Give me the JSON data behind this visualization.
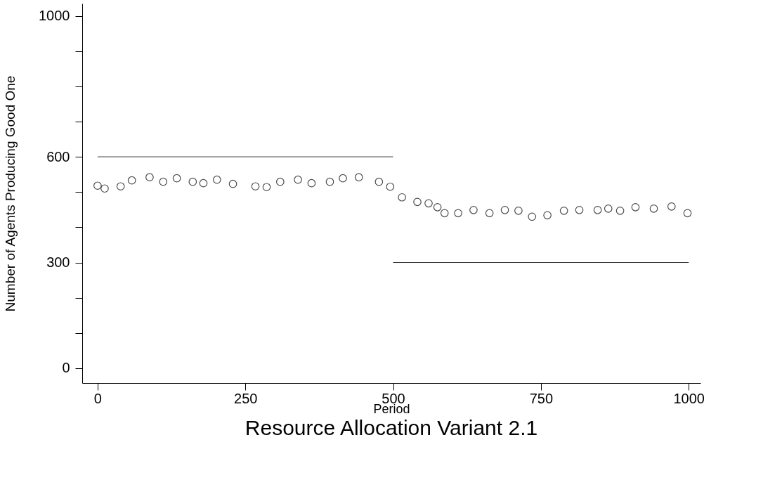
{
  "chart_data": {
    "type": "scatter",
    "title": "Resource Allocation Variant 2.1",
    "xlabel": "Period",
    "ylabel": "Number of Agents Producing Good One",
    "xlim": [
      -26,
      1020
    ],
    "ylim": [
      -42,
      1035
    ],
    "xticks": [
      0,
      250,
      500,
      750,
      1000
    ],
    "yticks": [
      0,
      {
        "value": 100,
        "label": null
      },
      {
        "value": 200,
        "label": null
      },
      300,
      {
        "value": 400,
        "label": null
      },
      {
        "value": 500,
        "label": null
      },
      600,
      {
        "value": 700,
        "label": null
      },
      {
        "value": 800,
        "label": null
      },
      {
        "value": 900,
        "label": null
      },
      1000
    ],
    "grid": false,
    "series": [
      {
        "color": "#000000",
        "marker": "circle",
        "x": [
          0,
          12,
          39,
          58,
          88,
          111,
          134,
          161,
          179,
          202,
          229,
          267,
          286,
          309,
          339,
          362,
          393,
          415,
          442,
          476,
          495,
          515,
          541,
          560,
          575,
          587,
          610,
          636,
          663,
          689,
          712,
          735,
          761,
          789,
          815,
          846,
          864,
          884,
          910,
          941,
          971,
          998
        ],
        "values": [
          518,
          510,
          516,
          533,
          542,
          529,
          539,
          529,
          525,
          535,
          523,
          516,
          514,
          529,
          535,
          525,
          529,
          539,
          542,
          529,
          515,
          485,
          472,
          468,
          457,
          440,
          440,
          449,
          440,
          449,
          447,
          430,
          434,
          447,
          449,
          449,
          453,
          447,
          457,
          453,
          459,
          440
        ]
      },
      {
        "type": "line",
        "marker": "none",
        "color": "#000000",
        "x": [
          0,
          500
        ],
        "values": [
          600,
          600
        ]
      },
      {
        "type": "line",
        "marker": "none",
        "color": "#000000",
        "x": [
          500,
          1000
        ],
        "values": [
          300,
          300
        ]
      }
    ]
  }
}
